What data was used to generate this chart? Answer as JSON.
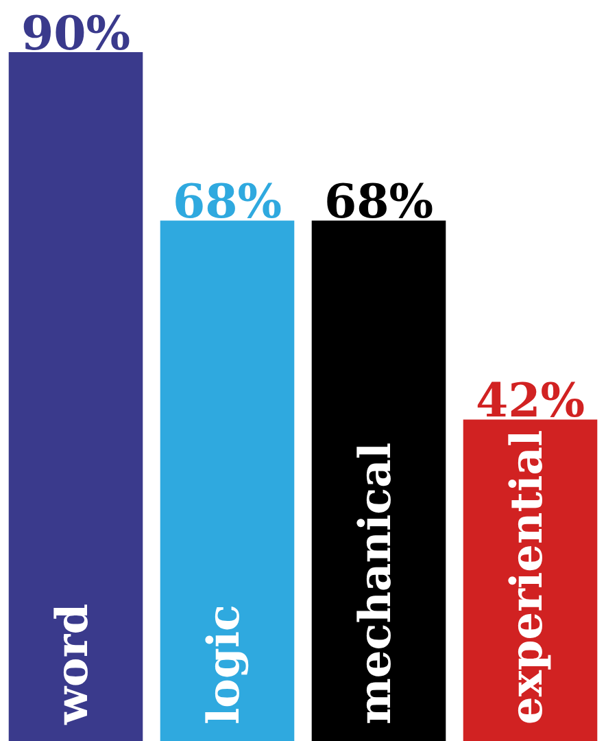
{
  "chart_data": {
    "type": "bar",
    "categories": [
      "word",
      "logic",
      "mechanical",
      "experiential"
    ],
    "values": [
      90,
      68,
      68,
      42
    ],
    "colors": [
      "#3a3a8c",
      "#2fa9df",
      "#000000",
      "#d12222"
    ],
    "value_labels": [
      "90%",
      "68%",
      "68%",
      "42%"
    ]
  }
}
